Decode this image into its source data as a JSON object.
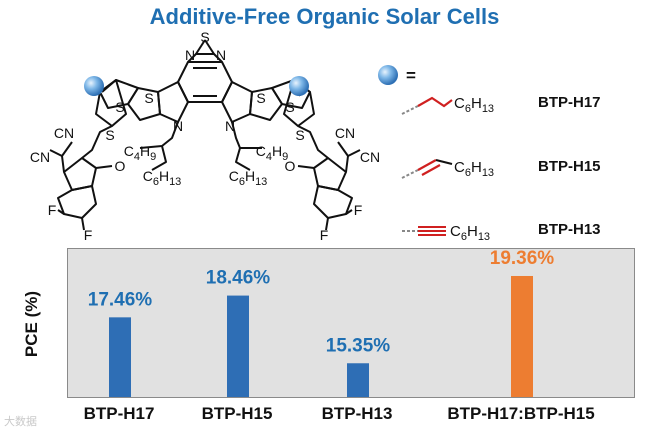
{
  "title": "Additive-Free Organic Solar Cells",
  "molecule": {
    "core_atoms": {
      "S": "S",
      "N": "N"
    },
    "alkyl_left": {
      "upper": "C4H9",
      "lower": "C6H13"
    },
    "alkyl_right": {
      "upper": "C4H9",
      "lower": "C6H13"
    },
    "end_groups": {
      "cyano": "CN",
      "carbonyl": "O",
      "fluorine": "F"
    }
  },
  "legend": {
    "equals": "=",
    "items": [
      {
        "name": "BTP-H17",
        "substituent": "C6H13",
        "bond": "single"
      },
      {
        "name": "BTP-H15",
        "substituent": "C6H13",
        "bond": "double"
      },
      {
        "name": "BTP-H13",
        "substituent": "C6H13",
        "bond": "triple"
      }
    ]
  },
  "chart_data": {
    "type": "bar",
    "ylabel": "PCE (%)",
    "categories": [
      "BTP-H17",
      "BTP-H15",
      "BTP-H13",
      "BTP-H17:BTP-H15"
    ],
    "values": [
      17.46,
      18.46,
      15.35,
      19.36
    ],
    "value_labels": [
      "17.46%",
      "18.46%",
      "15.35%",
      "19.36%"
    ],
    "ylim": [
      13.8,
      20.6
    ],
    "grid": false,
    "colors": [
      "#2e6eb5",
      "#2e6eb5",
      "#2e6eb5",
      "#ed7d31"
    ],
    "label_colors": [
      "#1f6fb2",
      "#1f6fb2",
      "#1f6fb2",
      "#ed7d31"
    ]
  },
  "watermark": "大数据"
}
